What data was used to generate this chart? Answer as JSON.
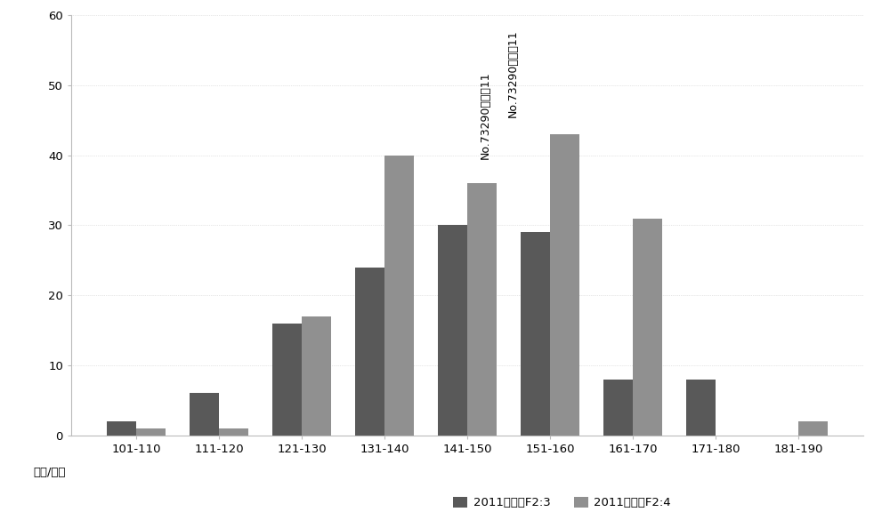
{
  "categories": [
    "101-110",
    "111-120",
    "121-130",
    "131-140",
    "141-150",
    "151-160",
    "161-170",
    "171-180",
    "181-190"
  ],
  "series1_label": "2011年西宁F2:3",
  "series2_label": "2011年西宁F2:4",
  "series1_values": [
    2,
    6,
    16,
    24,
    30,
    29,
    8,
    8,
    0
  ],
  "series2_values": [
    1,
    1,
    17,
    40,
    36,
    43,
    31,
    0,
    2
  ],
  "color1": "#595959",
  "color2": "#909090",
  "ylim": [
    0,
    60
  ],
  "yticks": [
    0,
    10,
    20,
    30,
    40,
    50,
    60
  ],
  "xlabel": "株高/厘米",
  "annotation_text1": "No.73290，中双11",
  "annotation_text2": "No.73290，中双11",
  "bar_width": 0.35,
  "figure_width": 10.0,
  "figure_height": 5.76,
  "background_color": "#ffffff"
}
